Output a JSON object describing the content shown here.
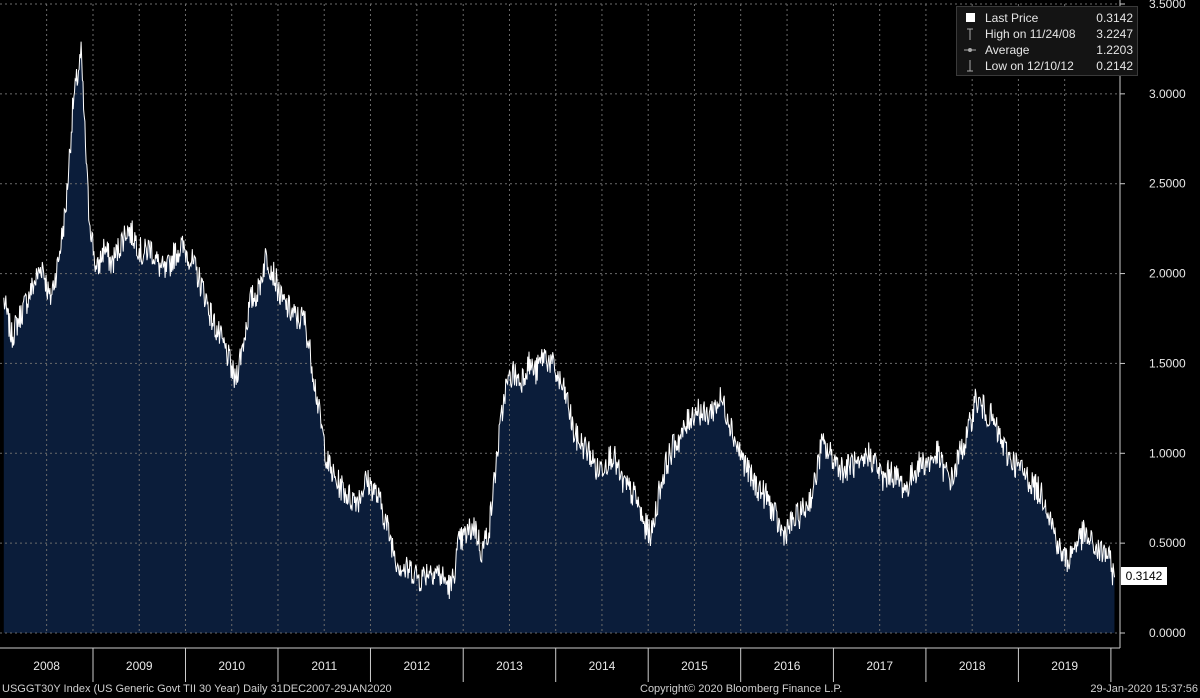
{
  "chart_data": {
    "type": "area",
    "ylim": [
      0,
      3.5
    ],
    "y_ticks": [
      "0.0000",
      "0.5000",
      "1.0000",
      "1.5000",
      "2.0000",
      "2.5000",
      "3.0000",
      "3.5000"
    ],
    "x_labels": [
      "2008",
      "2009",
      "2010",
      "2011",
      "2012",
      "2013",
      "2014",
      "2015",
      "2016",
      "2017",
      "2018",
      "2019"
    ],
    "grid": true,
    "series": [
      {
        "x": [
          "2008-01",
          "2008-02",
          "2008-03",
          "2008-04",
          "2008-05",
          "2008-06",
          "2008-07",
          "2008-08",
          "2008-09",
          "2008-10",
          "2008-11",
          "2008-12",
          "2009-01",
          "2009-02",
          "2009-03",
          "2009-04",
          "2009-05",
          "2009-06",
          "2009-07",
          "2009-08",
          "2009-09",
          "2009-10",
          "2009-11",
          "2009-12",
          "2010-01",
          "2010-02",
          "2010-03",
          "2010-04",
          "2010-05",
          "2010-06",
          "2010-07",
          "2010-08",
          "2010-09",
          "2010-10",
          "2010-11",
          "2010-12",
          "2011-01",
          "2011-02",
          "2011-03",
          "2011-04",
          "2011-05",
          "2011-06",
          "2011-07",
          "2011-08",
          "2011-09",
          "2011-10",
          "2011-11",
          "2011-12",
          "2012-01",
          "2012-02",
          "2012-03",
          "2012-04",
          "2012-05",
          "2012-06",
          "2012-07",
          "2012-08",
          "2012-09",
          "2012-10",
          "2012-11",
          "2012-12",
          "2013-01",
          "2013-02",
          "2013-03",
          "2013-04",
          "2013-05",
          "2013-06",
          "2013-07",
          "2013-08",
          "2013-09",
          "2013-10",
          "2013-11",
          "2013-12",
          "2014-01",
          "2014-02",
          "2014-03",
          "2014-04",
          "2014-05",
          "2014-06",
          "2014-07",
          "2014-08",
          "2014-09",
          "2014-10",
          "2014-11",
          "2014-12",
          "2015-01",
          "2015-02",
          "2015-03",
          "2015-04",
          "2015-05",
          "2015-06",
          "2015-07",
          "2015-08",
          "2015-09",
          "2015-10",
          "2015-11",
          "2015-12",
          "2016-01",
          "2016-02",
          "2016-03",
          "2016-04",
          "2016-05",
          "2016-06",
          "2016-07",
          "2016-08",
          "2016-09",
          "2016-10",
          "2016-11",
          "2016-12",
          "2017-01",
          "2017-02",
          "2017-03",
          "2017-04",
          "2017-05",
          "2017-06",
          "2017-07",
          "2017-08",
          "2017-09",
          "2017-10",
          "2017-11",
          "2017-12",
          "2018-01",
          "2018-02",
          "2018-03",
          "2018-04",
          "2018-05",
          "2018-06",
          "2018-07",
          "2018-08",
          "2018-09",
          "2018-10",
          "2018-11",
          "2018-12",
          "2019-01",
          "2019-02",
          "2019-03",
          "2019-04",
          "2019-05",
          "2019-06",
          "2019-07",
          "2019-08",
          "2019-09",
          "2019-10",
          "2019-11",
          "2019-12",
          "2020-01"
        ],
        "values": [
          1.85,
          1.65,
          1.75,
          1.85,
          1.95,
          2.05,
          1.85,
          2.05,
          2.35,
          2.95,
          3.22,
          2.35,
          2.0,
          2.15,
          2.05,
          2.15,
          2.25,
          2.2,
          2.1,
          2.15,
          2.05,
          2.0,
          2.1,
          2.15,
          2.1,
          2.0,
          1.9,
          1.75,
          1.65,
          1.55,
          1.4,
          1.6,
          1.85,
          1.9,
          2.1,
          2.0,
          1.85,
          1.8,
          1.75,
          1.75,
          1.5,
          1.2,
          0.95,
          0.85,
          0.8,
          0.75,
          0.75,
          0.85,
          0.8,
          0.7,
          0.55,
          0.4,
          0.35,
          0.35,
          0.3,
          0.35,
          0.35,
          0.3,
          0.25,
          0.5,
          0.55,
          0.6,
          0.45,
          0.6,
          1.0,
          1.35,
          1.45,
          1.4,
          1.5,
          1.45,
          1.55,
          1.5,
          1.4,
          1.3,
          1.1,
          1.05,
          1.0,
          0.9,
          0.95,
          1.0,
          0.85,
          0.8,
          0.75,
          0.6,
          0.55,
          0.8,
          0.95,
          1.05,
          1.1,
          1.2,
          1.25,
          1.2,
          1.25,
          1.3,
          1.2,
          1.05,
          0.95,
          0.85,
          0.8,
          0.75,
          0.65,
          0.55,
          0.6,
          0.65,
          0.7,
          0.8,
          1.05,
          1.0,
          0.95,
          0.9,
          0.95,
          0.9,
          1.0,
          0.95,
          0.85,
          0.9,
          0.85,
          0.8,
          0.9,
          0.95,
          0.95,
          1.0,
          0.9,
          0.85,
          1.0,
          1.1,
          1.3,
          1.25,
          1.2,
          1.1,
          1.0,
          0.95,
          0.9,
          0.85,
          0.8,
          0.75,
          0.6,
          0.45,
          0.4,
          0.5,
          0.55,
          0.5,
          0.45,
          0.45,
          0.31
        ]
      }
    ]
  },
  "legend": {
    "items": [
      {
        "label": "Last Price",
        "value": "0.3142",
        "icon": "white-square"
      },
      {
        "label": "High on 11/24/08",
        "value": "3.2247",
        "icon": "high-marker"
      },
      {
        "label": "Average",
        "value": "1.2203",
        "icon": "average-marker"
      },
      {
        "label": "Low on 12/10/12",
        "value": "0.2142",
        "icon": "low-marker"
      }
    ]
  },
  "last_price_tag": "0.3142",
  "footer": {
    "left": "USGGT30Y Index (US Generic Govt TII 30 Year)  Daily 31DEC2007-29JAN2020",
    "center": "Copyright© 2020 Bloomberg Finance L.P.",
    "right": "29-Jan-2020 15:37:56"
  },
  "colors": {
    "background": "#000000",
    "area_fill": "#0b1d3a",
    "line": "#ffffff",
    "grid": "#6b6b6b"
  }
}
